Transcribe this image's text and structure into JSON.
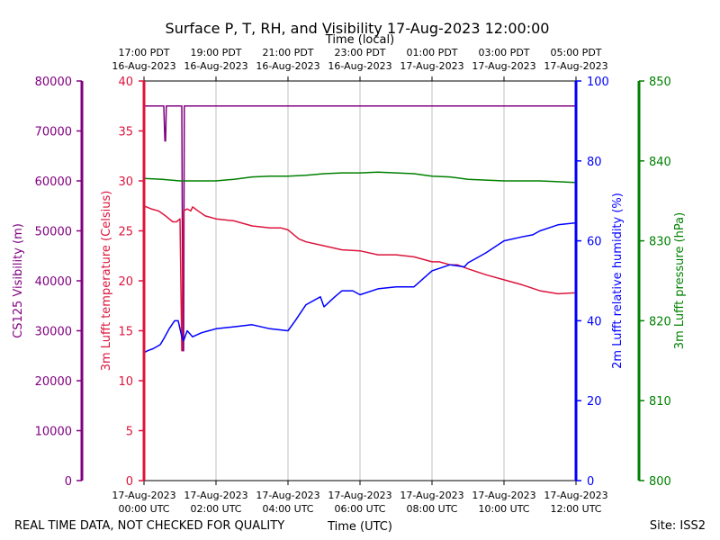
{
  "chart_data": {
    "type": "line",
    "title": "Surface P, T, RH, and Visibility 17-Aug-2023 12:00:00",
    "xlabel_top": "Time (local)",
    "xlabel_bottom": "Time (UTC)",
    "footer_left": "REAL TIME DATA, NOT CHECKED FOR QUALITY",
    "footer_right": "Site: ISS2",
    "x_range_utc": [
      "2023-08-17 00:00",
      "2023-08-17 12:00"
    ],
    "bottom_ticks": [
      {
        "date": "17-Aug-2023",
        "time": "00:00 UTC",
        "hour": 0
      },
      {
        "date": "17-Aug-2023",
        "time": "02:00 UTC",
        "hour": 2
      },
      {
        "date": "17-Aug-2023",
        "time": "04:00 UTC",
        "hour": 4
      },
      {
        "date": "17-Aug-2023",
        "time": "06:00 UTC",
        "hour": 6
      },
      {
        "date": "17-Aug-2023",
        "time": "08:00 UTC",
        "hour": 8
      },
      {
        "date": "17-Aug-2023",
        "time": "10:00 UTC",
        "hour": 10
      },
      {
        "date": "17-Aug-2023",
        "time": "12:00 UTC",
        "hour": 12
      }
    ],
    "top_ticks": [
      {
        "time": "17:00 PDT",
        "date": "16-Aug-2023",
        "hour": 0
      },
      {
        "time": "19:00 PDT",
        "date": "16-Aug-2023",
        "hour": 2
      },
      {
        "time": "21:00 PDT",
        "date": "16-Aug-2023",
        "hour": 4
      },
      {
        "time": "23:00 PDT",
        "date": "16-Aug-2023",
        "hour": 6
      },
      {
        "time": "01:00 PDT",
        "date": "17-Aug-2023",
        "hour": 8
      },
      {
        "time": "03:00 PDT",
        "date": "17-Aug-2023",
        "hour": 10
      },
      {
        "time": "05:00 PDT",
        "date": "17-Aug-2023",
        "hour": 12
      }
    ],
    "grid": true,
    "axes": [
      {
        "id": "visibility",
        "label": "CS125 Visibility (m)",
        "color": "#800080",
        "ylim": [
          0,
          80000
        ],
        "ticks": [
          0,
          10000,
          20000,
          30000,
          40000,
          50000,
          60000,
          70000,
          80000
        ]
      },
      {
        "id": "temperature",
        "label": "3m Lufft temperature (Celsius)",
        "color": "#dc143c",
        "ylim": [
          0,
          40
        ],
        "ticks": [
          0,
          5,
          10,
          15,
          20,
          25,
          30,
          35,
          40
        ]
      },
      {
        "id": "humidity",
        "label": "2m Lufft relative humidity (%)",
        "color": "#0000ff",
        "ylim": [
          0,
          100
        ],
        "ticks": [
          0,
          20,
          40,
          60,
          80,
          100
        ]
      },
      {
        "id": "pressure",
        "label": "3m Lufft pressure (hPa)",
        "color": "#008000",
        "ylim": [
          800,
          850
        ],
        "ticks": [
          800,
          810,
          820,
          830,
          840,
          850
        ]
      }
    ],
    "series": [
      {
        "axis": "visibility",
        "color": "#800080",
        "x": [
          0,
          0.55,
          0.58,
          0.6,
          0.62,
          1.05,
          1.08,
          1.1,
          1.12,
          1.15,
          12
        ],
        "y": [
          75000,
          75000,
          68000,
          68000,
          75000,
          75000,
          26000,
          26000,
          75000,
          75000,
          75000
        ]
      },
      {
        "axis": "temperature",
        "color": "#dc143c",
        "x": [
          0,
          0.2,
          0.4,
          0.6,
          0.8,
          0.9,
          1.0,
          1.05,
          1.1,
          1.2,
          1.3,
          1.35,
          1.5,
          1.7,
          2.0,
          2.5,
          3.0,
          3.5,
          3.8,
          4.0,
          4.3,
          4.5,
          5.0,
          5.5,
          6.0,
          6.5,
          7.0,
          7.5,
          8.0,
          8.2,
          8.5,
          8.7,
          9.0,
          9.5,
          10.0,
          10.5,
          11.0,
          11.5,
          12.0
        ],
        "y": [
          27.5,
          27.2,
          27.0,
          26.5,
          25.9,
          25.9,
          26.2,
          13.0,
          27.0,
          27.2,
          27.0,
          27.4,
          27.0,
          26.5,
          26.2,
          26.0,
          25.5,
          25.3,
          25.3,
          25.1,
          24.2,
          23.9,
          23.5,
          23.1,
          23.0,
          22.6,
          22.6,
          22.4,
          21.9,
          21.9,
          21.6,
          21.6,
          21.2,
          20.6,
          20.1,
          19.6,
          19.0,
          18.7,
          18.8
        ]
      },
      {
        "axis": "humidity",
        "color": "#0000ff",
        "x": [
          0,
          0.1,
          0.25,
          0.45,
          0.55,
          0.7,
          0.85,
          0.95,
          1.05,
          1.1,
          1.2,
          1.35,
          1.6,
          1.8,
          2.0,
          2.5,
          3.0,
          3.5,
          4.0,
          4.2,
          4.5,
          4.9,
          5.0,
          5.3,
          5.5,
          5.8,
          6.0,
          6.5,
          7.0,
          7.5,
          8.0,
          8.5,
          8.9,
          9.0,
          9.2,
          9.5,
          10.0,
          10.5,
          10.8,
          11.0,
          11.5,
          12.0
        ],
        "y": [
          32,
          32.5,
          33,
          34,
          35.5,
          38,
          40,
          40,
          36,
          35,
          37.5,
          36,
          37,
          37.5,
          38,
          38.5,
          39,
          38,
          37.5,
          40,
          44,
          46,
          43.5,
          46,
          47.5,
          47.5,
          46.5,
          48,
          48.5,
          48.5,
          52.5,
          54,
          53.5,
          54.5,
          55.5,
          57,
          60,
          61,
          61.5,
          62.5,
          64,
          64.5
        ]
      },
      {
        "axis": "pressure",
        "color": "#008000",
        "x": [
          0,
          0.5,
          1.0,
          1.5,
          2.0,
          2.5,
          3.0,
          3.5,
          4.0,
          4.5,
          5.0,
          5.5,
          6.0,
          6.5,
          7.0,
          7.5,
          8.0,
          8.5,
          9.0,
          9.5,
          10.0,
          10.5,
          11.0,
          11.5,
          12.0
        ],
        "y": [
          837.8,
          837.7,
          837.5,
          837.5,
          837.5,
          837.7,
          838.0,
          838.1,
          838.1,
          838.2,
          838.4,
          838.5,
          838.5,
          838.6,
          838.5,
          838.4,
          838.1,
          838.0,
          837.7,
          837.6,
          837.5,
          837.5,
          837.5,
          837.4,
          837.3
        ]
      }
    ]
  }
}
